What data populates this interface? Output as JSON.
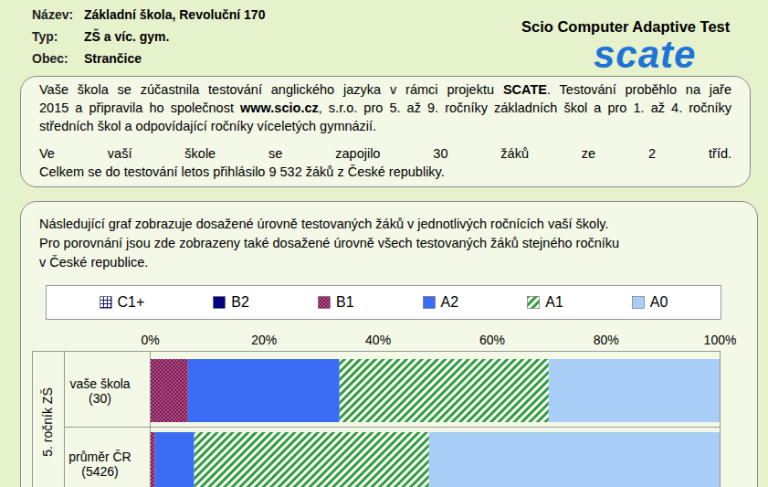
{
  "header": {
    "fields": [
      {
        "label": "Název:",
        "value": "Základní škola, Revoluční 170"
      },
      {
        "label": "Typ:",
        "value": "ZŠ a víc. gym."
      },
      {
        "label": "Obec:",
        "value": "Strančice"
      }
    ],
    "product": "Scio Computer Adaptive Test",
    "logo": "scate"
  },
  "intro": {
    "paragraphs": [
      [
        [
          {
            "text": "Vaše škola se zúčastnila testování anglického jazyka v rámci projektu ",
            "bold": false
          },
          {
            "text": "SCATE",
            "bold": true
          },
          {
            "text": ". Testování proběhlo na jaře",
            "bold": false
          }
        ],
        [
          {
            "text": "2015 a připravila ho společnost ",
            "bold": false
          },
          {
            "text": "www.scio.cz",
            "bold": true
          },
          {
            "text": ", s.r.o. pro 5. až 9. ročníky základních škol a pro 1. až 4. ročníky",
            "bold": false
          }
        ],
        [
          {
            "text": "středních škol a odpovídající ročníky víceletých gymnázií.",
            "bold": false
          }
        ]
      ],
      [
        [
          {
            "text": "Ve vaší škole se zapojilo 30 žáků ze 2 tříd.",
            "bold": false
          }
        ],
        [
          {
            "text": "Celkem se do testování letos přihlásilo 9 532 žáků z České republiky.",
            "bold": false
          }
        ]
      ]
    ]
  },
  "chart_intro": [
    "Následující graf zobrazuje dosažené úrovně testovaných žáků v jednotlivých ročnících vaší školy.",
    "Pro porovnání jsou zde zobrazeny také dosažené úrovně všech testovaných žáků stejného ročníku",
    "v České republice."
  ],
  "chart_data": {
    "type": "bar",
    "orientation": "horizontal",
    "stacked": true,
    "legend": "top",
    "grid": false,
    "group_label": "5. ročník ZŠ",
    "categories": [
      "vaše škola (30)",
      "průměr ČR (5426)"
    ],
    "xlim": [
      0,
      100
    ],
    "xticks": [
      {
        "value": 0,
        "label": "0%"
      },
      {
        "value": 20,
        "label": "20%"
      },
      {
        "value": 40,
        "label": "40%"
      },
      {
        "value": 60,
        "label": "60%"
      },
      {
        "value": 80,
        "label": "80%"
      },
      {
        "value": 100,
        "label": "100%"
      }
    ],
    "series": [
      {
        "name": "C1+",
        "color": "#1a1a6e",
        "marker": "grid",
        "values": [
          0,
          0
        ]
      },
      {
        "name": "B2",
        "color": "#000080",
        "values": [
          0,
          0
        ]
      },
      {
        "name": "B1",
        "color": "#7a1450",
        "marker": "dots",
        "values": [
          6.7,
          0.9
        ]
      },
      {
        "name": "A2",
        "color": "#3a6cf4",
        "values": [
          26.6,
          6.9
        ]
      },
      {
        "name": "A1",
        "color": "#2e9e3a",
        "marker": "stripes",
        "values": [
          36.7,
          41.2
        ]
      },
      {
        "name": "A0",
        "color": "#a8cdf6",
        "values": [
          30,
          51
        ]
      }
    ]
  }
}
